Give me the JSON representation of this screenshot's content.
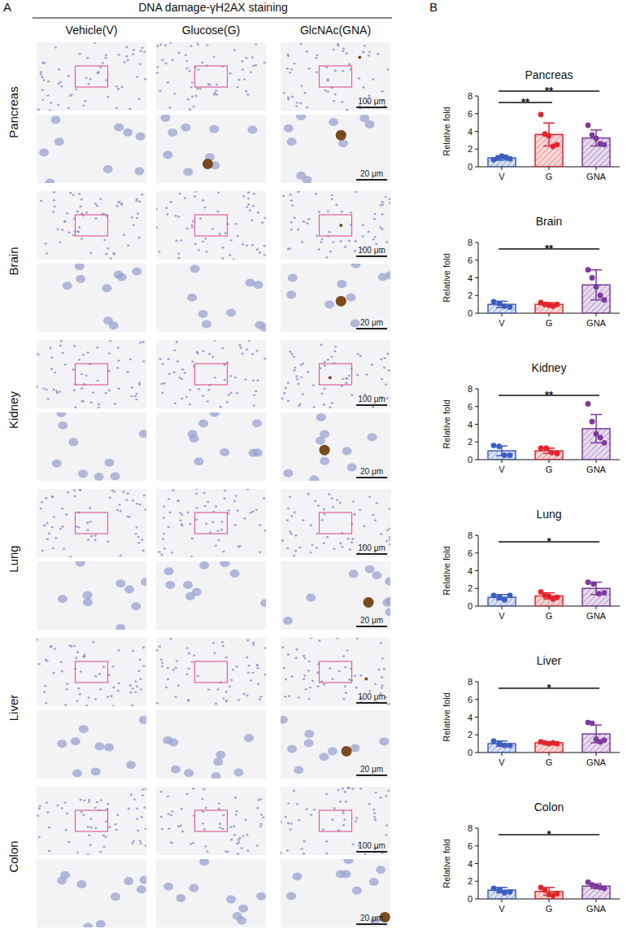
{
  "panel_a": {
    "panel_label": "A",
    "title": "DNA damage-γH2AX staining",
    "columns": [
      "Vehicle(V)",
      "Glucose(G)",
      "GlcNAc(GNA)"
    ],
    "rows": [
      "Pancreas",
      "Brain",
      "Kidney",
      "Lung",
      "Liver",
      "Colon"
    ],
    "scale_bars": [
      "100 μm",
      "20 μm"
    ]
  },
  "panel_b": {
    "panel_label": "B"
  },
  "chart_data": [
    {
      "type": "bar",
      "title": "Pancreas",
      "y_label": "Relative fold",
      "categories": [
        "V",
        "G",
        "GNA"
      ],
      "values": [
        1.0,
        3.65,
        3.25
      ],
      "errors": [
        0.25,
        1.3,
        0.9
      ],
      "points": [
        [
          0.8,
          1.0,
          1.2,
          1.1,
          0.9
        ],
        [
          5.9,
          3.7,
          3.5,
          2.3,
          2.5
        ],
        [
          4.7,
          3.6,
          3.2,
          2.6,
          2.5
        ]
      ],
      "colors": [
        "#3b5fc0",
        "#e0262c",
        "#7b3a9c"
      ],
      "ylim": [
        0,
        8
      ],
      "yticks": [
        0,
        2,
        4,
        6,
        8
      ],
      "significance": [
        {
          "pair": [
            "V",
            "G"
          ],
          "label": "**"
        },
        {
          "pair": [
            "V",
            "GNA"
          ],
          "label": "**"
        }
      ]
    },
    {
      "type": "bar",
      "title": "Brain",
      "y_label": "Relative fold",
      "categories": [
        "V",
        "G",
        "GNA"
      ],
      "values": [
        1.0,
        1.0,
        3.2
      ],
      "errors": [
        0.35,
        0.2,
        1.7
      ],
      "points": [
        [
          1.3,
          1.1,
          0.8,
          0.7
        ],
        [
          1.2,
          1.0,
          0.9,
          0.8,
          1.0
        ],
        [
          4.9,
          4.0,
          3.0,
          2.0,
          1.5
        ]
      ],
      "colors": [
        "#3b5fc0",
        "#e0262c",
        "#7b3a9c"
      ],
      "ylim": [
        0,
        8
      ],
      "yticks": [
        0,
        2,
        4,
        6,
        8
      ],
      "significance": [
        {
          "pair": [
            "V",
            "GNA"
          ],
          "label": "**"
        }
      ]
    },
    {
      "type": "bar",
      "title": "Kidney",
      "y_label": "Relative fold",
      "categories": [
        "V",
        "G",
        "GNA"
      ],
      "values": [
        1.0,
        1.0,
        3.5
      ],
      "errors": [
        0.55,
        0.3,
        1.6
      ],
      "points": [
        [
          1.6,
          1.5,
          0.5,
          0.5
        ],
        [
          1.3,
          1.3,
          0.8,
          0.7
        ],
        [
          6.3,
          4.3,
          2.9,
          2.5,
          1.9
        ]
      ],
      "colors": [
        "#3b5fc0",
        "#e0262c",
        "#7b3a9c"
      ],
      "ylim": [
        0,
        8
      ],
      "yticks": [
        0,
        2,
        4,
        6,
        8
      ],
      "significance": [
        {
          "pair": [
            "V",
            "GNA"
          ],
          "label": "**"
        }
      ]
    },
    {
      "type": "bar",
      "title": "Lung",
      "y_label": "Relative fold",
      "categories": [
        "V",
        "G",
        "GNA"
      ],
      "values": [
        1.0,
        1.15,
        2.0
      ],
      "errors": [
        0.3,
        0.35,
        0.7
      ],
      "points": [
        [
          1.2,
          1.0,
          0.7,
          1.2
        ],
        [
          1.6,
          1.2,
          1.1,
          0.8,
          1.0
        ],
        [
          2.7,
          2.5,
          1.4,
          1.5
        ]
      ],
      "colors": [
        "#3b5fc0",
        "#e0262c",
        "#7b3a9c"
      ],
      "ylim": [
        0,
        8
      ],
      "yticks": [
        0,
        2,
        4,
        6,
        8
      ],
      "significance": [
        {
          "pair": [
            "V",
            "GNA"
          ],
          "label": "*"
        }
      ]
    },
    {
      "type": "bar",
      "title": "Liver",
      "y_label": "Relative fold",
      "categories": [
        "V",
        "G",
        "GNA"
      ],
      "values": [
        1.0,
        1.1,
        2.1
      ],
      "errors": [
        0.3,
        0.1,
        1.0
      ],
      "points": [
        [
          1.3,
          1.0,
          0.8,
          0.8
        ],
        [
          1.2,
          1.1,
          1.0,
          1.1,
          1.0
        ],
        [
          3.4,
          3.3,
          1.5,
          1.2,
          1.4
        ]
      ],
      "colors": [
        "#3b5fc0",
        "#e0262c",
        "#7b3a9c"
      ],
      "ylim": [
        0,
        8
      ],
      "yticks": [
        0,
        2,
        4,
        6,
        8
      ],
      "significance": [
        {
          "pair": [
            "V",
            "GNA"
          ],
          "label": "*"
        }
      ]
    },
    {
      "type": "bar",
      "title": "Colon",
      "y_label": "Relative fold",
      "categories": [
        "V",
        "G",
        "GNA"
      ],
      "values": [
        1.0,
        0.85,
        1.45
      ],
      "errors": [
        0.3,
        0.45,
        0.25
      ],
      "points": [
        [
          1.2,
          1.0,
          0.7,
          0.8
        ],
        [
          1.3,
          1.0,
          0.5,
          0.4,
          0.6
        ],
        [
          1.9,
          1.6,
          1.4,
          1.3,
          1.2
        ]
      ],
      "colors": [
        "#3b5fc0",
        "#e0262c",
        "#7b3a9c"
      ],
      "ylim": [
        0,
        8
      ],
      "yticks": [
        0,
        2,
        4,
        6,
        8
      ],
      "significance": [
        {
          "pair": [
            "V",
            "GNA"
          ],
          "label": "*"
        }
      ]
    }
  ]
}
